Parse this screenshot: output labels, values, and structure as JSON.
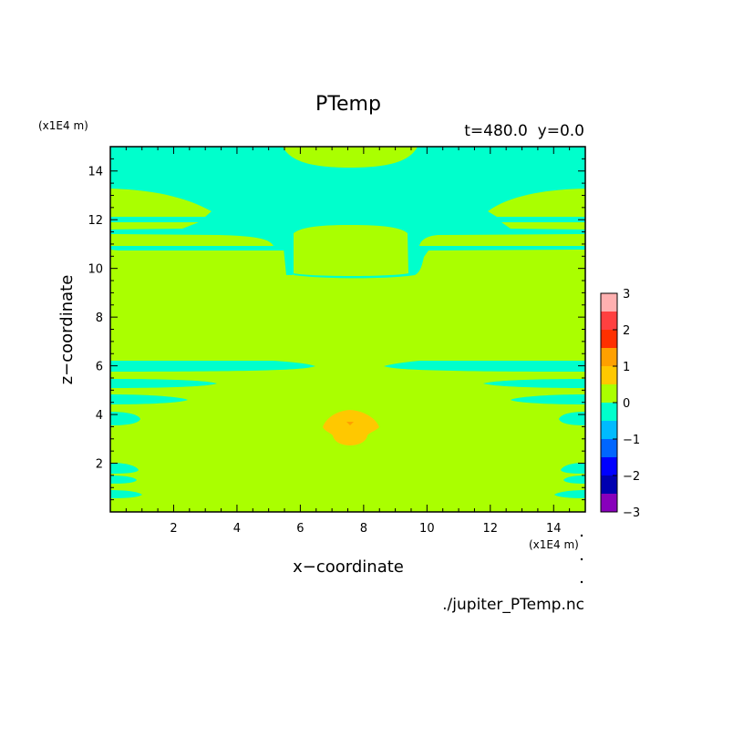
{
  "figure": {
    "title": "PTemp",
    "subtitle": "t=480.0  y=0.0",
    "source_file": "./jupiter_PTemp.nc"
  },
  "colors": {
    "level_m0_to_0": "#00ffcc",
    "level_0_to_p05": "#aaff00",
    "level_p05_to_p1": "#ffc800",
    "level_p1_to_p15": "#ffa000",
    "background": "#ffffff"
  },
  "chart_data": {
    "type": "heatmap",
    "title": "PTemp",
    "xlabel": "x−coordinate",
    "ylabel": "z−coordinate",
    "x_unit": "(x1E4 m)",
    "y_unit": "(x1E4 m)",
    "xlim": [
      0,
      15
    ],
    "ylim": [
      0,
      15
    ],
    "x_ticks": [
      2,
      4,
      6,
      8,
      10,
      12,
      14
    ],
    "y_ticks": [
      2,
      4,
      6,
      8,
      10,
      12,
      14
    ],
    "x_tick_labels": [
      "2",
      "4",
      "6",
      "8",
      "10",
      "12",
      "14"
    ],
    "y_tick_labels": [
      "2",
      "4",
      "6",
      "8",
      "10",
      "12",
      "14"
    ],
    "colorbar": {
      "ticks": [
        3,
        2,
        1,
        0,
        -1,
        -2,
        -3
      ],
      "tick_labels": [
        "3",
        "2",
        "1",
        "0",
        "−1",
        "−2",
        "−3"
      ],
      "levels": [
        {
          "from": 2.5,
          "to": 3.0,
          "color": "#ffb0b0"
        },
        {
          "from": 2.0,
          "to": 2.5,
          "color": "#ff4040"
        },
        {
          "from": 1.5,
          "to": 2.0,
          "color": "#ff3000"
        },
        {
          "from": 1.0,
          "to": 1.5,
          "color": "#ffa000"
        },
        {
          "from": 0.5,
          "to": 1.0,
          "color": "#ffc800"
        },
        {
          "from": 0.0,
          "to": 0.5,
          "color": "#aaff00"
        },
        {
          "from": -0.5,
          "to": 0.0,
          "color": "#00ffcc"
        },
        {
          "from": -1.0,
          "to": -0.5,
          "color": "#00bbff"
        },
        {
          "from": -1.5,
          "to": -1.0,
          "color": "#0066ff"
        },
        {
          "from": -2.0,
          "to": -1.5,
          "color": "#0000ff"
        },
        {
          "from": -2.5,
          "to": -2.0,
          "color": "#0000b0"
        },
        {
          "from": -3.0,
          "to": -2.5,
          "color": "#8800bb"
        }
      ]
    },
    "grid": false,
    "field_range": {
      "min": -0.5,
      "max": 1.5
    },
    "features": [
      {
        "kind": "negative_region",
        "desc": "upper layer",
        "x": [
          0,
          15
        ],
        "z": [
          11.5,
          15
        ]
      },
      {
        "kind": "negative_bands",
        "desc": "layered bands near z 6 and edges",
        "z_centers": [
          6.0,
          5.0,
          4.4,
          1.9,
          1.4,
          0.8
        ]
      },
      {
        "kind": "positive_blob",
        "desc": "warm anomaly",
        "x_center": 7.6,
        "z_center": 3.5,
        "peak_level": 1.0
      }
    ]
  }
}
